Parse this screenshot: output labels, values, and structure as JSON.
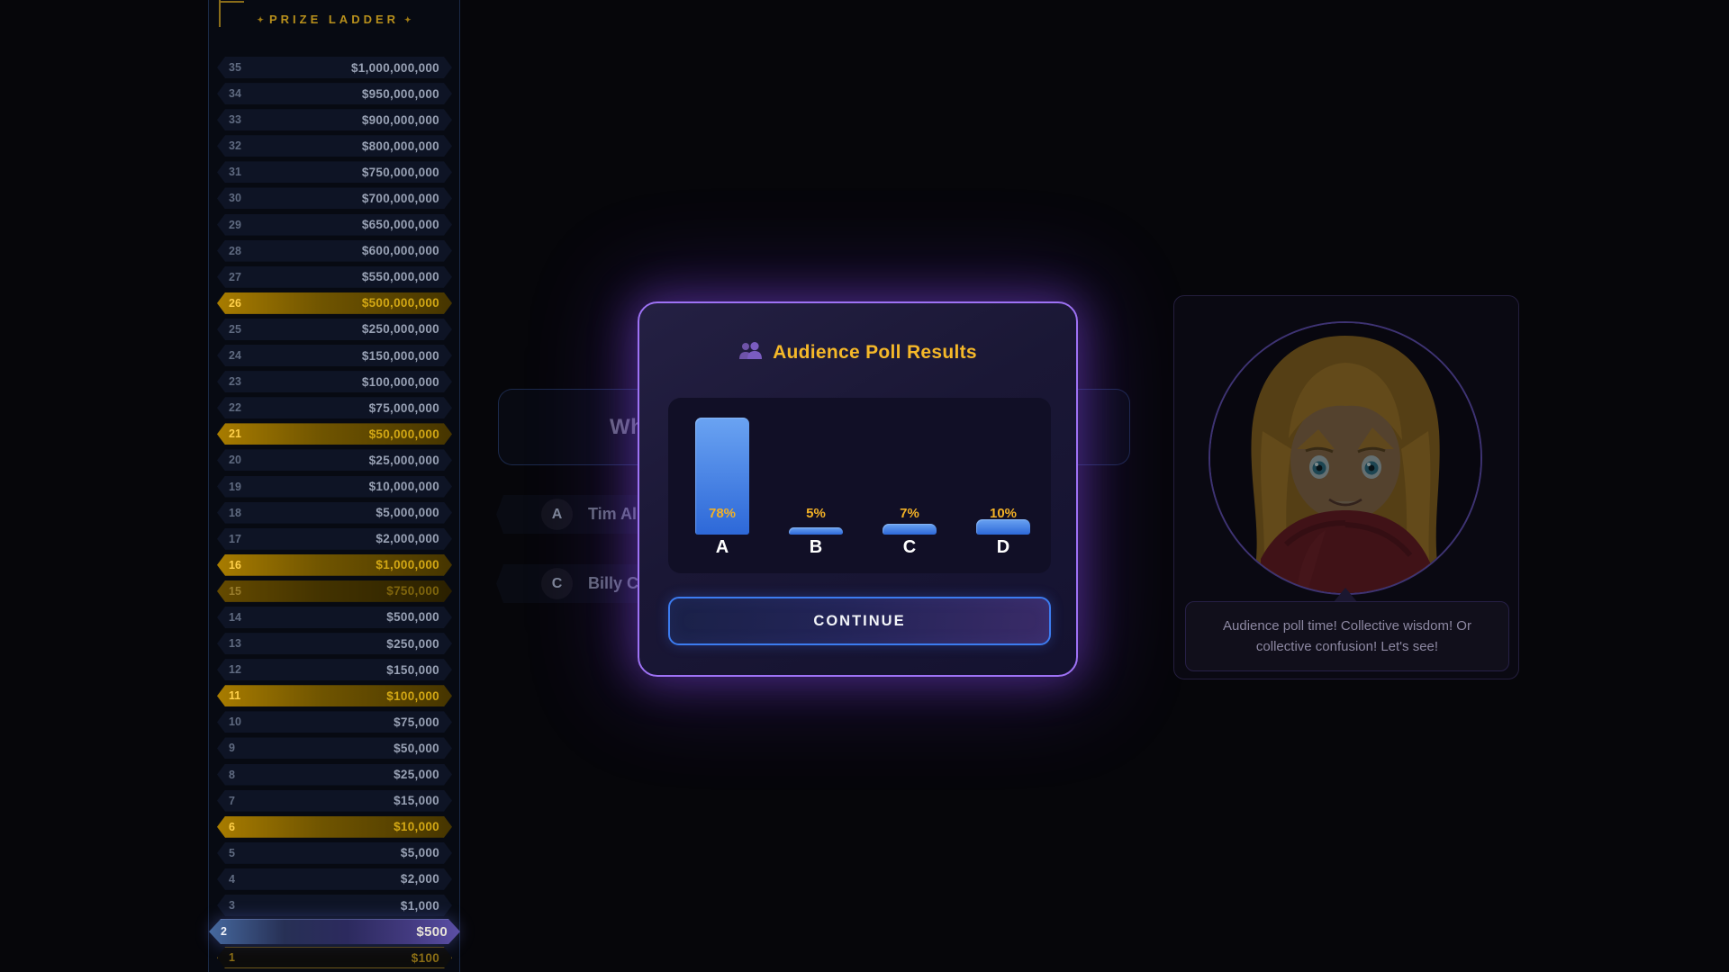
{
  "colors": {
    "gold_accent": "#f5b829",
    "purple_border": "#9e72f5",
    "blue_border": "#3c7cf0",
    "milestone_gold": "#a87c00",
    "bar_blue": "#2d68d8"
  },
  "prize_ladder": {
    "title": "PRIZE LADDER",
    "decor_icon": "✦",
    "levels": [
      {
        "num": 35,
        "amount": "$1,000,000,000",
        "state": "normal"
      },
      {
        "num": 34,
        "amount": "$950,000,000",
        "state": "normal"
      },
      {
        "num": 33,
        "amount": "$900,000,000",
        "state": "normal"
      },
      {
        "num": 32,
        "amount": "$800,000,000",
        "state": "normal"
      },
      {
        "num": 31,
        "amount": "$750,000,000",
        "state": "normal"
      },
      {
        "num": 30,
        "amount": "$700,000,000",
        "state": "normal"
      },
      {
        "num": 29,
        "amount": "$650,000,000",
        "state": "normal"
      },
      {
        "num": 28,
        "amount": "$600,000,000",
        "state": "normal"
      },
      {
        "num": 27,
        "amount": "$550,000,000",
        "state": "normal"
      },
      {
        "num": 26,
        "amount": "$500,000,000",
        "state": "milestone"
      },
      {
        "num": 25,
        "amount": "$250,000,000",
        "state": "normal"
      },
      {
        "num": 24,
        "amount": "$150,000,000",
        "state": "normal"
      },
      {
        "num": 23,
        "amount": "$100,000,000",
        "state": "normal"
      },
      {
        "num": 22,
        "amount": "$75,000,000",
        "state": "normal"
      },
      {
        "num": 21,
        "amount": "$50,000,000",
        "state": "milestone"
      },
      {
        "num": 20,
        "amount": "$25,000,000",
        "state": "normal"
      },
      {
        "num": 19,
        "amount": "$10,000,000",
        "state": "normal"
      },
      {
        "num": 18,
        "amount": "$5,000,000",
        "state": "normal"
      },
      {
        "num": 17,
        "amount": "$2,000,000",
        "state": "normal"
      },
      {
        "num": 16,
        "amount": "$1,000,000",
        "state": "milestone"
      },
      {
        "num": 15,
        "amount": "$750,000",
        "state": "milestone-dim"
      },
      {
        "num": 14,
        "amount": "$500,000",
        "state": "normal"
      },
      {
        "num": 13,
        "amount": "$250,000",
        "state": "normal"
      },
      {
        "num": 12,
        "amount": "$150,000",
        "state": "normal"
      },
      {
        "num": 11,
        "amount": "$100,000",
        "state": "milestone"
      },
      {
        "num": 10,
        "amount": "$75,000",
        "state": "normal"
      },
      {
        "num": 9,
        "amount": "$50,000",
        "state": "normal"
      },
      {
        "num": 8,
        "amount": "$25,000",
        "state": "normal"
      },
      {
        "num": 7,
        "amount": "$15,000",
        "state": "normal"
      },
      {
        "num": 6,
        "amount": "$10,000",
        "state": "milestone"
      },
      {
        "num": 5,
        "amount": "$5,000",
        "state": "normal"
      },
      {
        "num": 4,
        "amount": "$2,000",
        "state": "normal"
      },
      {
        "num": 3,
        "amount": "$1,000",
        "state": "normal"
      },
      {
        "num": 2,
        "amount": "$500",
        "state": "current"
      },
      {
        "num": 1,
        "amount": "$100",
        "state": "completed"
      }
    ]
  },
  "question": {
    "visible_text": "Wh",
    "answers": [
      {
        "letter": "A",
        "text": "Tim Alle"
      },
      {
        "letter": "C",
        "text": "Billy Cry"
      }
    ]
  },
  "modal": {
    "title": "Audience Poll Results",
    "icon": "audience-people-icon",
    "continue_label": "CONTINUE"
  },
  "chart_data": {
    "type": "bar",
    "title": "Audience Poll Results",
    "categories": [
      "A",
      "B",
      "C",
      "D"
    ],
    "values": [
      78,
      5,
      7,
      10
    ],
    "value_labels": [
      "78%",
      "5%",
      "7%",
      "10%"
    ],
    "ylim": [
      0,
      100
    ],
    "grid": false,
    "legend": false
  },
  "host": {
    "message": "Audience poll time! Collective wisdom! Or collective confusion! Let's see!"
  }
}
